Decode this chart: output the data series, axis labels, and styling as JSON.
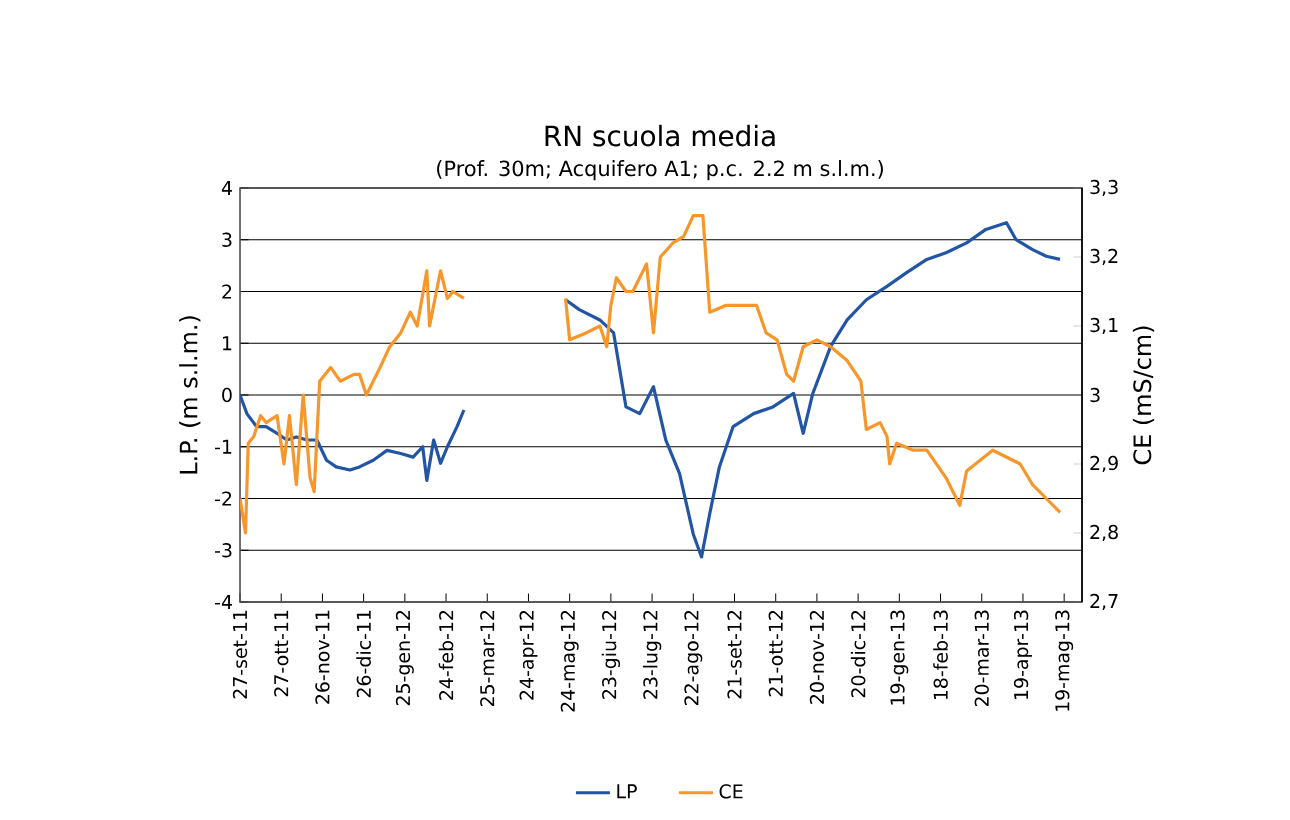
{
  "chart_data": {
    "type": "line",
    "title": "RN scuola media",
    "subtitle": "(Prof. 30m; Acquifero A1; p.c. 2.2 m s.l.m.)",
    "ylabel": "L.P. (m s.l.m.)",
    "y2label": "CE (mS/cm)",
    "xlim": [
      "2011-09-27",
      "2013-06-01"
    ],
    "xticks": [
      {
        "value": "2011-09-27",
        "label": "27-set-11"
      },
      {
        "value": "2011-10-27",
        "label": "27-ott-11"
      },
      {
        "value": "2011-11-26",
        "label": "26-nov-11"
      },
      {
        "value": "2011-12-26",
        "label": "26-dic-11"
      },
      {
        "value": "2012-01-25",
        "label": "25-gen-12"
      },
      {
        "value": "2012-02-24",
        "label": "24-feb-12"
      },
      {
        "value": "2012-03-25",
        "label": "25-mar-12"
      },
      {
        "value": "2012-04-24",
        "label": "24-apr-12"
      },
      {
        "value": "2012-05-24",
        "label": "24-mag-12"
      },
      {
        "value": "2012-06-23",
        "label": "23-giu-12"
      },
      {
        "value": "2012-07-23",
        "label": "23-lug-12"
      },
      {
        "value": "2012-08-22",
        "label": "22-ago-12"
      },
      {
        "value": "2012-09-21",
        "label": "21-set-12"
      },
      {
        "value": "2012-10-21",
        "label": "21-ott-12"
      },
      {
        "value": "2012-11-20",
        "label": "20-nov-12"
      },
      {
        "value": "2012-12-20",
        "label": "20-dic-12"
      },
      {
        "value": "2013-01-19",
        "label": "19-gen-13"
      },
      {
        "value": "2013-02-18",
        "label": "18-feb-13"
      },
      {
        "value": "2013-03-20",
        "label": "20-mar-13"
      },
      {
        "value": "2013-04-19",
        "label": "19-apr-13"
      },
      {
        "value": "2013-05-19",
        "label": "19-mag-13"
      }
    ],
    "ylim": [
      -4,
      4
    ],
    "yticks": [
      -4,
      -3,
      -2,
      -1,
      0,
      1,
      2,
      3,
      4
    ],
    "y2lim": [
      2.7,
      3.3
    ],
    "y2ticks": [
      {
        "value": 2.7,
        "label": "2,7"
      },
      {
        "value": 2.8,
        "label": "2,8"
      },
      {
        "value": 2.9,
        "label": "2,9"
      },
      3,
      {
        "value": 3.1,
        "label": "3,1"
      },
      {
        "value": 3.2,
        "label": "3,2"
      },
      {
        "value": 3.3,
        "label": "3,3"
      }
    ],
    "grid": "y",
    "legend": "bottom",
    "line_style": "solid",
    "series": [
      {
        "name": "LP",
        "color": "#2255a4",
        "x": [
          "2011-09-27",
          "2011-10-02",
          "2011-10-09",
          "2011-10-16",
          "2011-10-24",
          "2011-10-31",
          "2011-11-07",
          "2011-11-15",
          "2011-11-22",
          "2011-11-29",
          "2011-12-06",
          "2011-12-16",
          "2011-12-23",
          "2012-01-02",
          "2012-01-12",
          "2012-01-22",
          "2012-01-31",
          "2012-02-07",
          "2012-02-10",
          "2012-02-15",
          "2012-02-20",
          "2012-02-25",
          "2012-03-03",
          "2012-03-08",
          "2012-04-15",
          "2012-05-21",
          "2012-05-31",
          "2012-06-15",
          "2012-06-25",
          "2012-07-04",
          "2012-07-14",
          "2012-07-24",
          "2012-08-02",
          "2012-08-12",
          "2012-08-22",
          "2012-08-28",
          "2012-09-03",
          "2012-09-10",
          "2012-09-20",
          "2012-10-05",
          "2012-10-19",
          "2012-11-03",
          "2012-11-10",
          "2012-11-17",
          "2012-11-30",
          "2012-12-12",
          "2012-12-26",
          "2013-01-10",
          "2013-01-24",
          "2013-02-08",
          "2013-02-22",
          "2013-03-09",
          "2013-03-23",
          "2013-04-07",
          "2013-04-14",
          "2013-04-26",
          "2013-05-06",
          "2013-05-16"
        ],
        "values": [
          0.0,
          -0.36,
          -0.61,
          -0.61,
          -0.74,
          -0.87,
          -0.81,
          -0.87,
          -0.87,
          -1.26,
          -1.39,
          -1.45,
          -1.39,
          -1.26,
          -1.07,
          -1.13,
          -1.2,
          -1.0,
          -1.65,
          -0.87,
          -1.32,
          -1.0,
          -0.61,
          -0.29,
          null,
          1.84,
          1.65,
          1.45,
          1.2,
          -0.23,
          -0.36,
          0.16,
          -0.87,
          -1.52,
          -2.69,
          -3.13,
          -2.29,
          -1.39,
          -0.61,
          -0.36,
          -0.23,
          0.03,
          -0.74,
          0.03,
          0.94,
          1.45,
          1.84,
          2.1,
          2.36,
          2.62,
          2.75,
          2.94,
          3.2,
          3.33,
          3.0,
          2.81,
          2.68,
          2.62
        ]
      },
      {
        "name": "CE",
        "color": "#f7962a",
        "axis": "y2",
        "x": [
          "2011-09-27",
          "2011-10-01",
          "2011-10-03",
          "2011-10-07",
          "2011-10-12",
          "2011-10-16",
          "2011-10-24",
          "2011-10-29",
          "2011-11-02",
          "2011-11-07",
          "2011-11-12",
          "2011-11-17",
          "2011-11-20",
          "2011-11-24",
          "2011-12-02",
          "2011-12-09",
          "2011-12-19",
          "2011-12-23",
          "2011-12-28",
          "2012-01-07",
          "2012-01-14",
          "2012-01-22",
          "2012-01-29",
          "2012-02-03",
          "2012-02-10",
          "2012-02-12",
          "2012-02-20",
          "2012-02-25",
          "2012-02-29",
          "2012-03-08",
          "2012-04-15",
          "2012-05-21",
          "2012-05-24",
          "2012-06-05",
          "2012-06-15",
          "2012-06-20",
          "2012-06-23",
          "2012-06-27",
          "2012-07-04",
          "2012-07-09",
          "2012-07-19",
          "2012-07-24",
          "2012-07-29",
          "2012-08-07",
          "2012-08-15",
          "2012-08-22",
          "2012-08-29",
          "2012-09-03",
          "2012-09-15",
          "2012-10-07",
          "2012-10-14",
          "2012-10-22",
          "2012-10-29",
          "2012-11-03",
          "2012-11-10",
          "2012-11-20",
          "2012-11-30",
          "2012-12-12",
          "2012-12-22",
          "2012-12-26",
          "2013-01-05",
          "2013-01-10",
          "2013-01-12",
          "2013-01-17",
          "2013-01-29",
          "2013-02-08",
          "2013-02-22",
          "2013-03-04",
          "2013-03-09",
          "2013-03-28",
          "2013-04-07",
          "2013-04-17",
          "2013-04-26",
          "2013-05-06",
          "2013-05-16"
        ],
        "values": [
          2.85,
          2.8,
          2.93,
          2.94,
          2.97,
          2.96,
          2.97,
          2.9,
          2.97,
          2.87,
          3.0,
          2.88,
          2.86,
          3.02,
          3.04,
          3.02,
          3.03,
          3.03,
          3.0,
          3.04,
          3.07,
          3.09,
          3.12,
          3.1,
          3.18,
          3.1,
          3.18,
          3.14,
          3.15,
          3.14,
          null,
          3.14,
          3.08,
          3.09,
          3.1,
          3.07,
          3.13,
          3.17,
          3.15,
          3.15,
          3.19,
          3.09,
          3.2,
          3.22,
          3.23,
          3.26,
          3.26,
          3.12,
          3.13,
          3.13,
          3.09,
          3.08,
          3.03,
          3.02,
          3.07,
          3.08,
          3.07,
          3.05,
          3.02,
          2.95,
          2.96,
          2.94,
          2.9,
          2.93,
          2.92,
          2.92,
          2.88,
          2.84,
          2.89,
          2.92,
          2.91,
          2.9,
          2.87,
          2.85,
          2.83
        ]
      }
    ]
  }
}
